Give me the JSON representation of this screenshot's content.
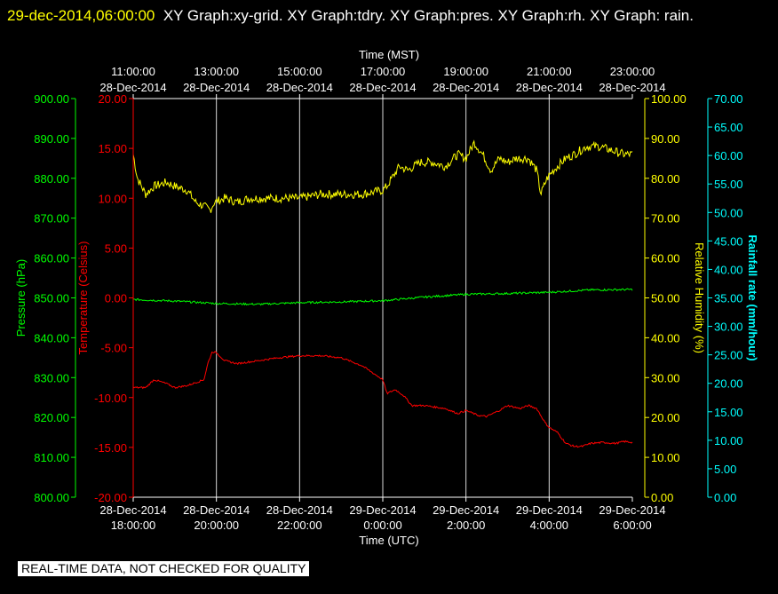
{
  "header": {
    "timestamp": "29-dec-2014,06:00:00",
    "titles": "XY Graph:xy-grid.  XY Graph:tdry.  XY Graph:pres.  XY Graph:rh.  XY Graph: rain."
  },
  "footer": {
    "notice": "REAL-TIME DATA, NOT CHECKED FOR QUALITY"
  },
  "colors": {
    "pressure": "#00ff00",
    "temperature": "#ff0000",
    "humidity": "#ffff00",
    "rain": "#00ffff",
    "grid": "#ffffff",
    "axis": "#ffffff"
  },
  "chart_data": {
    "type": "line",
    "x_top": {
      "label": "Time (MST)",
      "ticks": [
        [
          "11:00:00",
          "28-Dec-2014"
        ],
        [
          "13:00:00",
          "28-Dec-2014"
        ],
        [
          "15:00:00",
          "28-Dec-2014"
        ],
        [
          "17:00:00",
          "28-Dec-2014"
        ],
        [
          "19:00:00",
          "28-Dec-2014"
        ],
        [
          "21:00:00",
          "28-Dec-2014"
        ],
        [
          "23:00:00",
          "28-Dec-2014"
        ]
      ]
    },
    "x_bottom": {
      "label": "Time (UTC)",
      "ticks": [
        [
          "28-Dec-2014",
          "18:00:00"
        ],
        [
          "28-Dec-2014",
          "20:00:00"
        ],
        [
          "28-Dec-2014",
          "22:00:00"
        ],
        [
          "29-Dec-2014",
          "0:00:00"
        ],
        [
          "29-Dec-2014",
          "2:00:00"
        ],
        [
          "29-Dec-2014",
          "4:00:00"
        ],
        [
          "29-Dec-2014",
          "6:00:00"
        ]
      ]
    },
    "x_range_hours_utc": [
      18,
      30
    ],
    "grid": true,
    "axes": {
      "pressure": {
        "label": "Pressure (hPa)",
        "range": [
          800,
          900
        ],
        "ticks": [
          "900.00",
          "890.00",
          "880.00",
          "870.00",
          "860.00",
          "850.00",
          "840.00",
          "830.00",
          "820.00",
          "810.00",
          "800.00"
        ]
      },
      "temperature": {
        "label": "Temperature (Celsius)",
        "range": [
          -20,
          20
        ],
        "ticks": [
          "20.00",
          "15.00",
          "10.00",
          "5.00",
          "0.00",
          "-5.00",
          "-10.00",
          "-15.00",
          "-20.00"
        ]
      },
      "humidity": {
        "label": "Relative Humidity (%)",
        "range": [
          0,
          100
        ],
        "ticks": [
          "100.00",
          "90.00",
          "80.00",
          "70.00",
          "60.00",
          "50.00",
          "40.00",
          "30.00",
          "20.00",
          "10.00",
          "0.00"
        ]
      },
      "rain": {
        "label": "Rainfall rate (mm/hour)",
        "range": [
          0,
          70
        ],
        "ticks": [
          "70.00",
          "65.00",
          "60.00",
          "55.00",
          "50.00",
          "45.00",
          "40.00",
          "35.00",
          "30.00",
          "25.00",
          "20.00",
          "15.00",
          "10.00",
          "5.00",
          "0.00"
        ]
      }
    },
    "series": [
      {
        "key": "humidity",
        "x": [
          18.0,
          18.1,
          18.3,
          18.5,
          18.8,
          19.0,
          19.3,
          19.5,
          19.7,
          19.85,
          19.95,
          20.2,
          20.5,
          20.8,
          21.0,
          21.5,
          22.0,
          22.5,
          23.0,
          23.5,
          24.0,
          24.1,
          24.4,
          24.6,
          24.9,
          25.2,
          25.5,
          25.8,
          26.0,
          26.2,
          26.4,
          26.6,
          26.8,
          27.0,
          27.2,
          27.5,
          27.7,
          27.8,
          27.95,
          28.1,
          28.4,
          28.6,
          28.9,
          29.2,
          29.5,
          29.8,
          30.0
        ],
        "values": [
          86,
          80,
          76,
          78,
          79,
          78,
          77,
          74,
          73,
          72,
          74,
          75,
          74,
          75,
          75,
          75,
          75,
          76,
          76,
          76,
          77,
          78,
          83,
          82,
          84,
          84,
          83,
          86,
          85,
          89,
          86,
          82,
          85,
          84,
          85,
          85,
          82,
          76,
          80,
          82,
          85,
          86,
          88,
          88,
          87,
          86,
          86
        ]
      },
      {
        "key": "pressure",
        "x": [
          18.0,
          19.0,
          20.0,
          21.0,
          22.0,
          23.0,
          24.0,
          25.0,
          26.0,
          27.0,
          28.0,
          29.0,
          30.0
        ],
        "values": [
          849.6,
          849.2,
          848.6,
          848.4,
          848.8,
          849.0,
          849.3,
          850.2,
          850.9,
          851.1,
          851.4,
          852.0,
          852.1
        ]
      },
      {
        "key": "temperature",
        "x": [
          18.0,
          18.3,
          18.5,
          18.8,
          19.0,
          19.3,
          19.5,
          19.7,
          19.8,
          19.9,
          20.0,
          20.2,
          20.5,
          21.0,
          21.5,
          22.0,
          22.5,
          23.0,
          23.5,
          24.0,
          24.1,
          24.3,
          24.5,
          24.7,
          25.0,
          25.5,
          25.8,
          26.0,
          26.3,
          26.5,
          26.8,
          27.0,
          27.3,
          27.5,
          27.7,
          27.9,
          28.0,
          28.2,
          28.4,
          28.6,
          28.8,
          29.0,
          29.3,
          29.6,
          29.8,
          30.0
        ],
        "values": [
          -9.0,
          -9.0,
          -8.2,
          -8.6,
          -9.0,
          -8.8,
          -8.5,
          -8.2,
          -6.5,
          -5.4,
          -5.5,
          -6.3,
          -6.6,
          -6.3,
          -6.0,
          -5.8,
          -5.8,
          -6.0,
          -6.8,
          -8.2,
          -9.6,
          -9.2,
          -9.8,
          -10.8,
          -10.8,
          -11.1,
          -11.6,
          -11.3,
          -11.8,
          -11.9,
          -11.3,
          -10.8,
          -11.1,
          -10.8,
          -11.1,
          -12.5,
          -13.0,
          -13.5,
          -14.6,
          -14.9,
          -14.9,
          -14.6,
          -14.5,
          -14.6,
          -14.4,
          -14.5
        ]
      }
    ]
  }
}
